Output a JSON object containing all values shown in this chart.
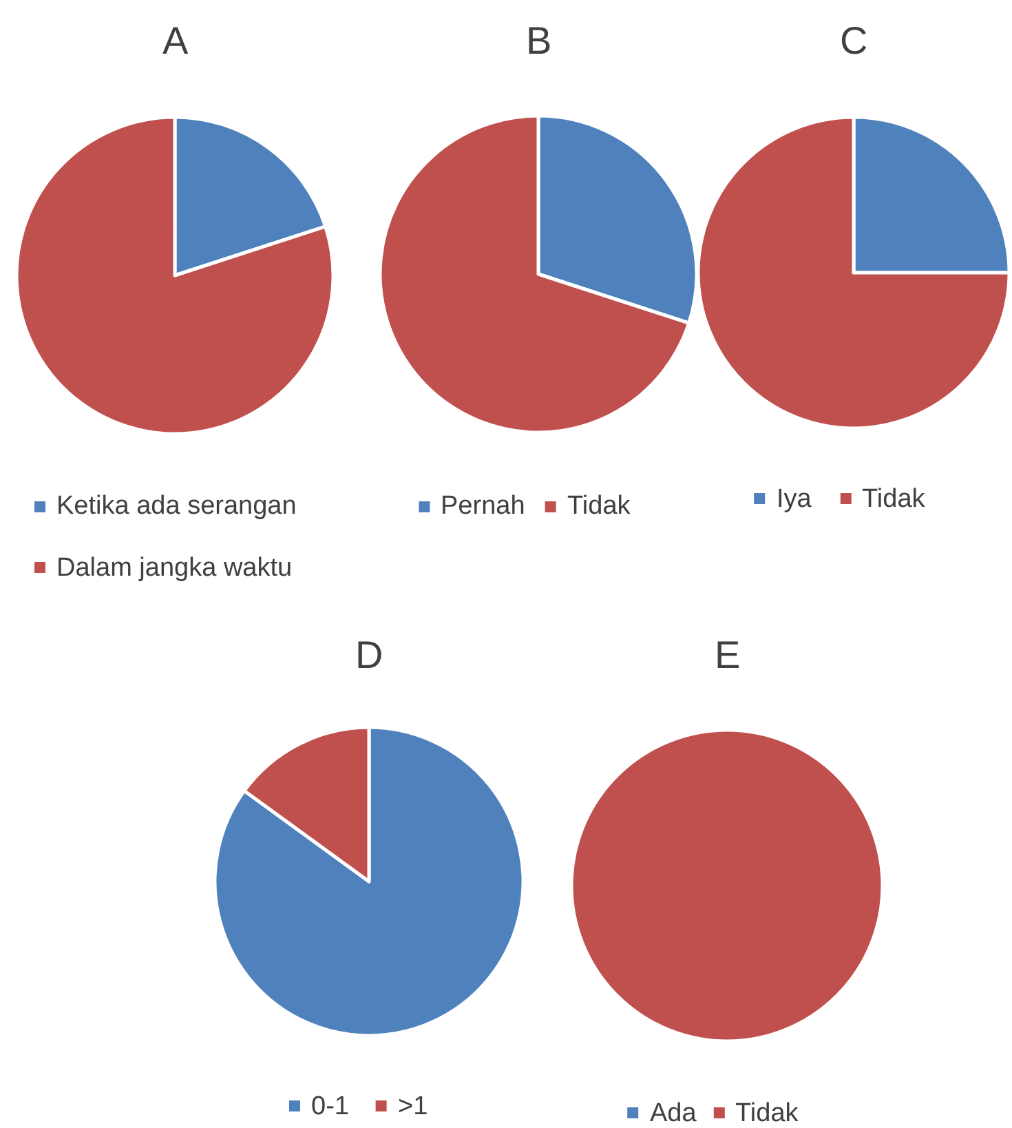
{
  "chart_data": [
    {
      "type": "pie",
      "title": "A",
      "categories": [
        "Ketika ada serangan",
        "Dalam jangka waktu"
      ],
      "values": [
        20,
        80
      ],
      "colors": [
        "#4f81bd",
        "#c0504d"
      ],
      "legend": "bottom"
    },
    {
      "type": "pie",
      "title": "B",
      "categories": [
        "Pernah",
        "Tidak"
      ],
      "values": [
        30,
        70
      ],
      "colors": [
        "#4f81bd",
        "#c0504d"
      ],
      "legend": "bottom"
    },
    {
      "type": "pie",
      "title": "C",
      "categories": [
        "Iya",
        "Tidak"
      ],
      "values": [
        25,
        75
      ],
      "colors": [
        "#4f81bd",
        "#c0504d"
      ],
      "legend": "bottom"
    },
    {
      "type": "pie",
      "title": "D",
      "categories": [
        "0-1",
        ">1"
      ],
      "values": [
        85,
        15
      ],
      "colors": [
        "#4f81bd",
        "#c0504d"
      ],
      "legend": "bottom"
    },
    {
      "type": "pie",
      "title": "E",
      "categories": [
        "Ada",
        "Tidak"
      ],
      "values": [
        0,
        100
      ],
      "colors": [
        "#4f81bd",
        "#c0504d"
      ],
      "legend": "bottom"
    }
  ]
}
